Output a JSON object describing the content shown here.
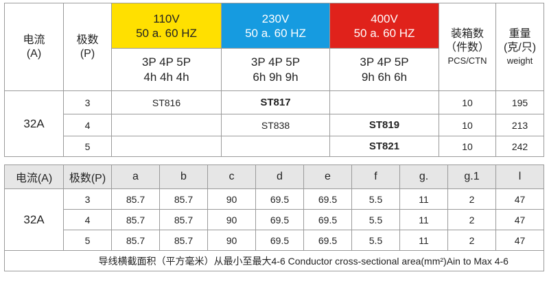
{
  "top": {
    "current_header": [
      "电流",
      "(A)"
    ],
    "poles_header": [
      "极数",
      "(P)"
    ],
    "v110": {
      "voltage": "110V",
      "freq": "50 a. 60 HZ",
      "poles": "3P  4P  5P",
      "hours": "4h  4h  4h"
    },
    "v230": {
      "voltage": "230V",
      "freq": "50 a. 60 HZ",
      "poles": "3P  4P  5P",
      "hours": "6h  9h  9h"
    },
    "v400": {
      "voltage": "400V",
      "freq": "50 a. 60 HZ",
      "poles": "3P  4P  5P",
      "hours": "9h  6h  6h"
    },
    "pack_header": [
      "装箱数",
      "（件数）",
      "PCS/CTN"
    ],
    "weight_header": [
      "重量",
      "(克/只)",
      "weight"
    ],
    "current": "32A",
    "rows": [
      {
        "pole": "3",
        "v110": "ST816",
        "v230": "ST817",
        "v400": "",
        "pcs": "10",
        "weight": "195"
      },
      {
        "pole": "4",
        "v110": "",
        "v230": "ST838",
        "v400": "ST819",
        "pcs": "10",
        "weight": "213"
      },
      {
        "pole": "5",
        "v110": "",
        "v230": "",
        "v400": "ST821",
        "pcs": "10",
        "weight": "242"
      }
    ]
  },
  "bottom": {
    "headers": [
      "电流(A)",
      "极数(P)",
      "a",
      "b",
      "c",
      "d",
      "e",
      "f",
      "g.",
      "g.1",
      "l"
    ],
    "current": "32A",
    "rows": [
      [
        "3",
        "85.7",
        "85.7",
        "90",
        "69.5",
        "69.5",
        "5.5",
        "11",
        "2",
        "47"
      ],
      [
        "4",
        "85.7",
        "85.7",
        "90",
        "69.5",
        "69.5",
        "5.5",
        "11",
        "2",
        "47"
      ],
      [
        "5",
        "85.7",
        "85.7",
        "90",
        "69.5",
        "69.5",
        "5.5",
        "11",
        "2",
        "47"
      ]
    ],
    "footnote": "导线横截面积（平方毫米）从最小至最大4-6 Conductor cross-sectional area(mm²)Ain to Max 4-6"
  }
}
